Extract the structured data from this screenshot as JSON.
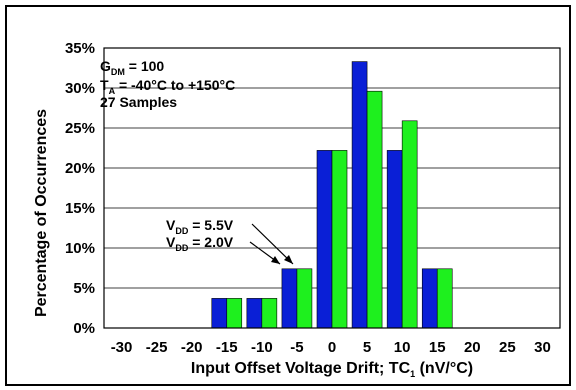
{
  "chart_data": {
    "type": "bar",
    "title": "",
    "xlabel": "Input Offset Voltage Drift; TC₁ (nV/°C)",
    "xlabel_main": "Input Offset Voltage Drift; TC",
    "xlabel_sub": "1",
    "xlabel_tail": " (nV/°C)",
    "ylabel": "Percentage of Occurrences",
    "categories": [
      "-30",
      "-25",
      "-20",
      "-15",
      "-10",
      "-5",
      "0",
      "5",
      "10",
      "15",
      "20",
      "25",
      "30"
    ],
    "series": [
      {
        "name": "VDD = 5.5V",
        "color": "#0a1fd6",
        "values": [
          0,
          0,
          0,
          3.7,
          3.7,
          7.4,
          22.2,
          33.3,
          22.2,
          7.4,
          0,
          0,
          0
        ]
      },
      {
        "name": "VDD = 2.0V",
        "color": "#1ef01e",
        "values": [
          0,
          0,
          0,
          3.7,
          3.7,
          7.4,
          22.2,
          29.6,
          25.9,
          7.4,
          0,
          0,
          0
        ]
      }
    ],
    "ylim": [
      0,
      35
    ],
    "yticks": [
      "0%",
      "5%",
      "10%",
      "15%",
      "20%",
      "25%",
      "30%",
      "35%"
    ],
    "grid": "horizontal",
    "annotations": {
      "line1_main": "G",
      "line1_sub": "DM",
      "line1_tail": " = 100",
      "line2_main": "T",
      "line2_sub": "A",
      "line2_tail": " = -40°C to +150°C",
      "line3": "27 Samples"
    },
    "legend_labels": {
      "a_main": "V",
      "a_sub": "DD",
      "a_tail": " = 5.5V",
      "b_main": "V",
      "b_sub": "DD",
      "b_tail": " = 2.0V"
    }
  }
}
